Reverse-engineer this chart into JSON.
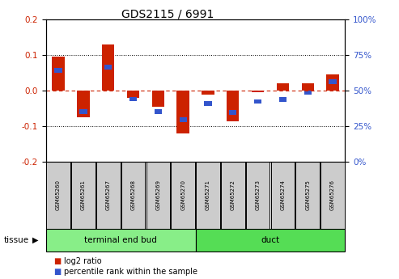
{
  "title": "GDS2115 / 6991",
  "samples": [
    "GSM65260",
    "GSM65261",
    "GSM65267",
    "GSM65268",
    "GSM65269",
    "GSM65270",
    "GSM65271",
    "GSM65272",
    "GSM65273",
    "GSM65274",
    "GSM65275",
    "GSM65276"
  ],
  "log2_ratio": [
    0.095,
    -0.075,
    0.13,
    -0.02,
    -0.045,
    -0.12,
    -0.01,
    -0.085,
    -0.005,
    0.02,
    0.02,
    0.045
  ],
  "pct_rank_bottom": [
    0.05,
    -0.065,
    0.06,
    -0.03,
    -0.065,
    -0.088,
    -0.042,
    -0.068,
    -0.037,
    -0.032,
    -0.012,
    0.018
  ],
  "pct_bar_height": 0.013,
  "red_color": "#cc2200",
  "blue_color": "#3355cc",
  "dashed_color": "#cc2200",
  "ylim": [
    -0.2,
    0.2
  ],
  "yticks_left": [
    -0.2,
    -0.1,
    0.0,
    0.1,
    0.2
  ],
  "yticks_right": [
    0,
    25,
    50,
    75,
    100
  ],
  "yticks_right_vals": [
    -0.2,
    -0.1,
    0.0,
    0.1,
    0.2
  ],
  "groups": [
    {
      "label": "terminal end bud",
      "start": 0,
      "end": 6,
      "color": "#88ee88"
    },
    {
      "label": "duct",
      "start": 6,
      "end": 12,
      "color": "#55dd55"
    }
  ],
  "legend": [
    {
      "color": "#cc2200",
      "label": "log2 ratio"
    },
    {
      "color": "#3355cc",
      "label": "percentile rank within the sample"
    }
  ],
  "bar_width": 0.5,
  "sample_bg": "#cccccc",
  "plot_bg": "#ffffff",
  "tick_label_color_left": "#cc2200",
  "tick_label_color_right": "#3355cc"
}
